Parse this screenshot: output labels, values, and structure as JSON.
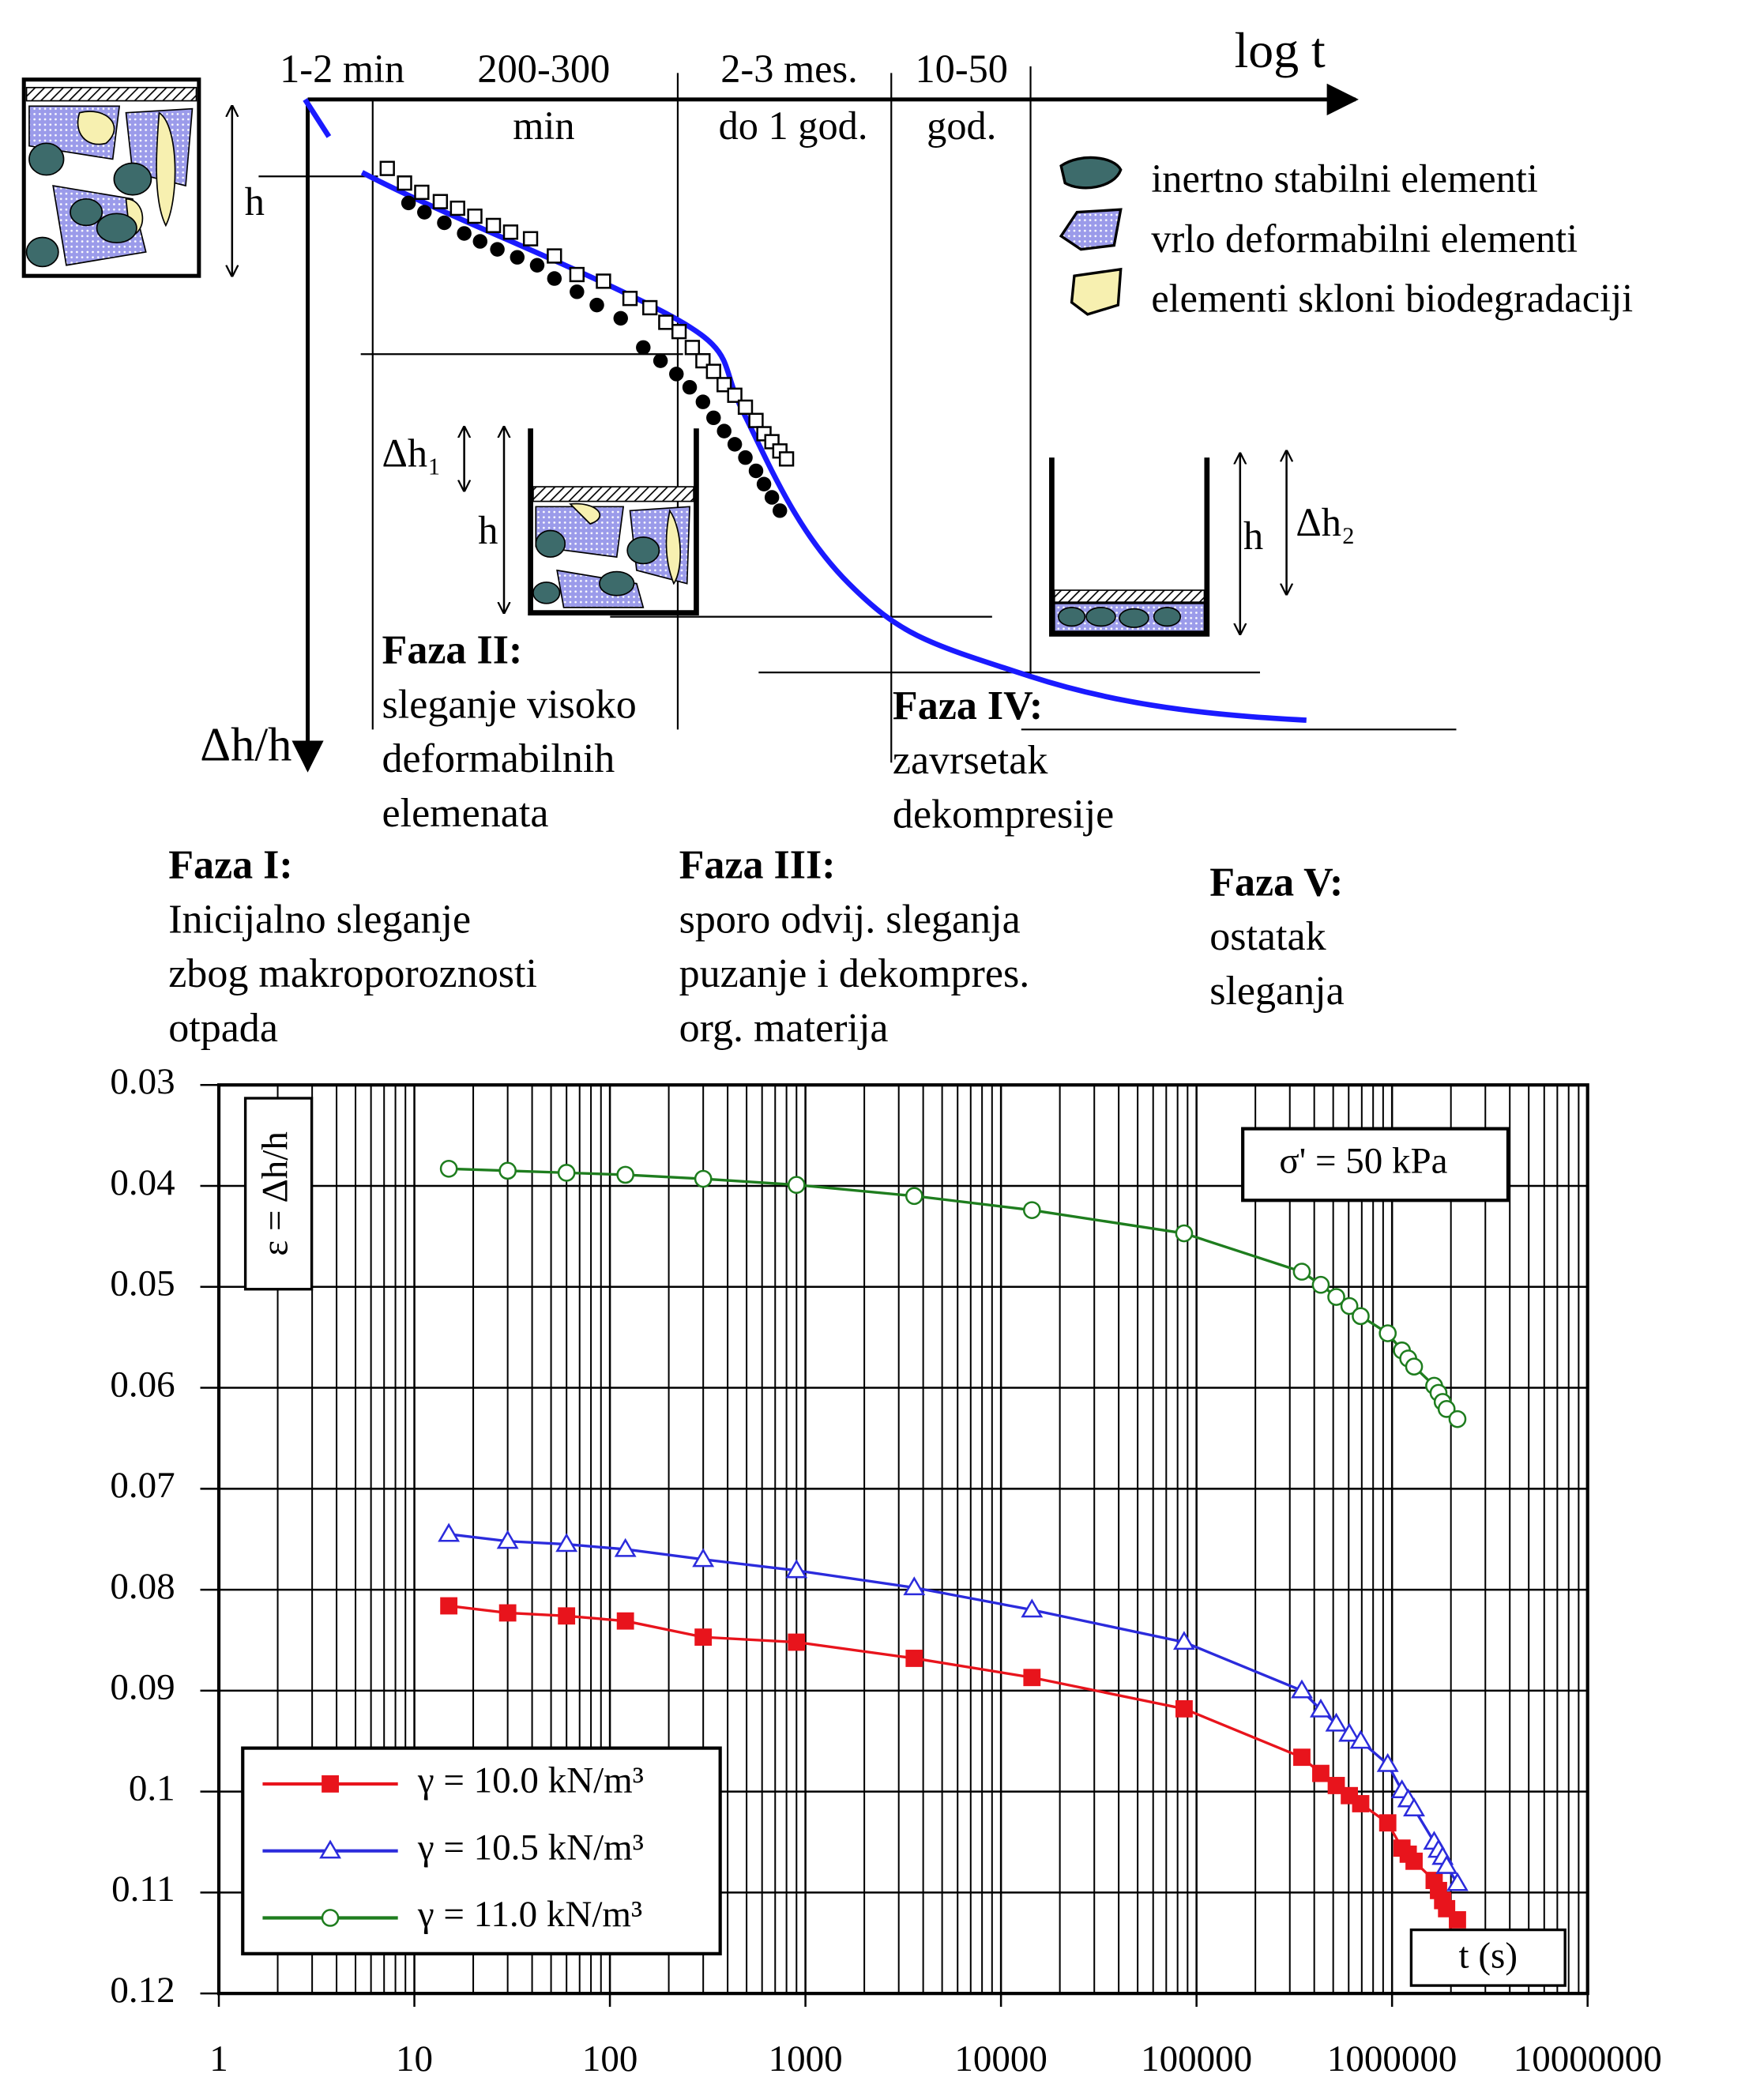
{
  "diagram": {
    "axis_x_label": "log t",
    "axis_y_label": "Δh/h",
    "time_labels": [
      "1-2 min",
      "200-300",
      "min",
      "2-3 mes.",
      "do 1 god.",
      "10-50",
      "god."
    ],
    "h_labels": [
      "h",
      "h",
      "h"
    ],
    "dh_labels": [
      "Δh₁",
      "Δh₂"
    ],
    "legend": [
      "inertno stabilni elementi",
      "vrlo deformabilni elementi",
      "elementi skloni biodegradaciji"
    ],
    "phases": [
      {
        "title": "Faza I:",
        "lines": [
          "Inicijalno sleganje",
          "zbog makroporoznosti",
          "otpada"
        ]
      },
      {
        "title": "Faza II:",
        "lines": [
          "sleganje visoko",
          "deformabilnih",
          "elemenata"
        ]
      },
      {
        "title": "Faza III:",
        "lines": [
          "sporo odvij. sleganja",
          "puzanje i dekompres.",
          "org. materija"
        ]
      },
      {
        "title": "Faza IV:",
        "lines": [
          "zavrsetak",
          "dekompresije"
        ]
      },
      {
        "title": "Faza V:",
        "lines": [
          "ostatak",
          "sleganja"
        ]
      }
    ]
  },
  "chart_data": {
    "type": "line",
    "y_label": "ε = Δh/h",
    "x_label": "t (s)",
    "annotation": "σ' = 50 kPa",
    "x_scale": "log",
    "minor_grid": true,
    "y_inverted": true,
    "grid": true,
    "legend_position": "lower left",
    "xlim": [
      1,
      10000000
    ],
    "xticks": [
      1,
      10,
      100,
      1000,
      10000,
      100000,
      1000000,
      10000000
    ],
    "ylim": [
      0.03,
      0.12
    ],
    "yticks": [
      0.03,
      0.04,
      0.05,
      0.06,
      0.07,
      0.08,
      0.09,
      0.1,
      0.11,
      0.12
    ],
    "x": [
      15,
      30,
      60,
      120,
      300,
      900,
      3600,
      14400,
      86400,
      345600,
      432000,
      518400,
      604800,
      691200,
      950400,
      1123200,
      1209600,
      1296000,
      1641600,
      1728000,
      1814400,
      1900800,
      2160000
    ],
    "series": [
      {
        "name": "γ = 10.0 kN/m³",
        "color": "#e8141c",
        "marker": "square",
        "values": [
          0.0816,
          0.0823,
          0.0826,
          0.0831,
          0.0847,
          0.0852,
          0.0868,
          0.0887,
          0.0918,
          0.0966,
          0.0982,
          0.0994,
          0.1004,
          0.1012,
          0.1031,
          0.1056,
          0.1062,
          0.1069,
          0.1088,
          0.1098,
          0.1108,
          0.1116,
          0.1127
        ]
      },
      {
        "name": "γ = 10.5 kN/m³",
        "color": "#2b2bdc",
        "marker": "triangle",
        "values": [
          0.0745,
          0.0752,
          0.0755,
          0.076,
          0.077,
          0.0781,
          0.0798,
          0.082,
          0.0852,
          0.09,
          0.0919,
          0.0933,
          0.0943,
          0.095,
          0.0973,
          0.0999,
          0.1008,
          0.1017,
          0.105,
          0.1058,
          0.1065,
          0.1074,
          0.1091
        ]
      },
      {
        "name": "γ = 11.0 kN/m³",
        "color": "#1e7d1e",
        "marker": "circle",
        "values": [
          0.0383,
          0.0385,
          0.0387,
          0.0389,
          0.0393,
          0.0399,
          0.041,
          0.0424,
          0.0447,
          0.0485,
          0.0498,
          0.051,
          0.0519,
          0.0529,
          0.0546,
          0.0563,
          0.0571,
          0.0579,
          0.0598,
          0.0605,
          0.0614,
          0.0621,
          0.0631
        ]
      }
    ]
  }
}
